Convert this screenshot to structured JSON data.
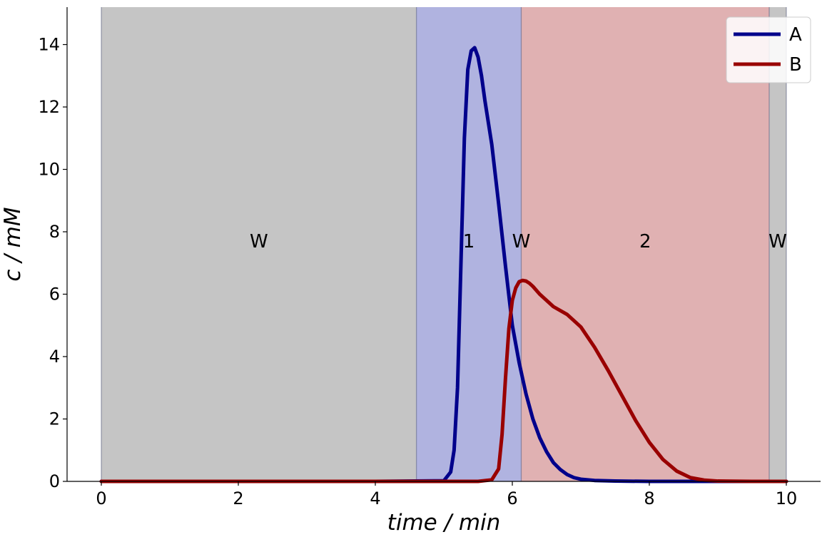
{
  "chart_data": {
    "type": "line",
    "title": "",
    "xlabel": "time / min",
    "ylabel": "c / mM",
    "xlim": [
      -0.5,
      10.5
    ],
    "ylim": [
      0,
      15.2
    ],
    "xticks": [
      0,
      2,
      4,
      6,
      8,
      10
    ],
    "yticks": [
      0,
      2,
      4,
      6,
      8,
      10,
      12,
      14
    ],
    "grid": false,
    "legend_position": "top-right",
    "regions": [
      {
        "label": "W",
        "start": 0.0,
        "end": 4.6,
        "color": "#c5c5c5"
      },
      {
        "label": "1",
        "start": 4.6,
        "end": 6.13,
        "color": "#b0b3e0"
      },
      {
        "label": "W",
        "start": 6.13,
        "end": 6.13,
        "color": "#c5c5c5"
      },
      {
        "label": "2",
        "start": 6.13,
        "end": 9.75,
        "color": "#e0b1b2"
      },
      {
        "label": "W",
        "start": 9.75,
        "end": 10.0,
        "color": "#c5c5c5"
      }
    ],
    "series": [
      {
        "name": "A",
        "color": "#00008b",
        "x": [
          0,
          4.0,
          5.0,
          5.1,
          5.15,
          5.2,
          5.25,
          5.3,
          5.35,
          5.4,
          5.45,
          5.5,
          5.55,
          5.6,
          5.7,
          5.8,
          5.9,
          6.0,
          6.1,
          6.2,
          6.3,
          6.4,
          6.5,
          6.6,
          6.7,
          6.8,
          6.9,
          7.0,
          7.2,
          7.5,
          8.0,
          10.0
        ],
        "y": [
          0,
          0,
          0.02,
          0.3,
          1.0,
          3.0,
          7.0,
          11.0,
          13.2,
          13.8,
          13.9,
          13.6,
          13.0,
          12.2,
          10.8,
          8.9,
          6.9,
          5.0,
          3.8,
          2.8,
          2.0,
          1.4,
          0.95,
          0.6,
          0.38,
          0.22,
          0.12,
          0.07,
          0.03,
          0.01,
          0.0,
          0.0
        ]
      },
      {
        "name": "B",
        "color": "#990000",
        "x": [
          0,
          5.5,
          5.7,
          5.8,
          5.85,
          5.9,
          5.95,
          6.0,
          6.05,
          6.1,
          6.15,
          6.2,
          6.25,
          6.3,
          6.4,
          6.5,
          6.6,
          6.8,
          7.0,
          7.2,
          7.4,
          7.6,
          7.8,
          8.0,
          8.2,
          8.4,
          8.6,
          8.8,
          9.0,
          9.5,
          10.0
        ],
        "y": [
          0,
          0,
          0.05,
          0.4,
          1.5,
          3.3,
          4.9,
          5.8,
          6.2,
          6.4,
          6.44,
          6.42,
          6.35,
          6.25,
          6.0,
          5.8,
          5.6,
          5.35,
          4.95,
          4.3,
          3.55,
          2.75,
          1.95,
          1.25,
          0.7,
          0.33,
          0.12,
          0.04,
          0.01,
          0.0,
          0.0
        ]
      }
    ]
  }
}
